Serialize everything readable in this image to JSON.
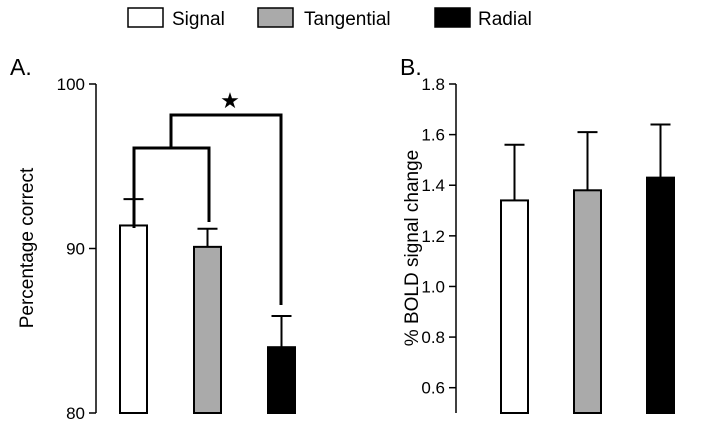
{
  "legend": {
    "items": [
      {
        "label": "Signal",
        "color": "#ffffff"
      },
      {
        "label": "Tangential",
        "color": "#aaaaaa"
      },
      {
        "label": "Radial",
        "color": "#000000"
      }
    ]
  },
  "chart_data": [
    {
      "panel": "A.",
      "type": "bar",
      "ylabel": "Percentage correct",
      "ylim": [
        80,
        100
      ],
      "yticks": [
        "80",
        "90",
        "100"
      ],
      "categories": [
        "Signal",
        "Tangential",
        "Radial"
      ],
      "values": [
        91.4,
        90.1,
        84.0
      ],
      "errors": [
        1.6,
        1.1,
        1.9
      ],
      "colors": [
        "#ffffff",
        "#aaaaaa",
        "#000000"
      ],
      "annotation": "★"
    },
    {
      "panel": "B.",
      "type": "bar",
      "ylabel": "% BOLD signal change",
      "ylim": [
        0.5,
        1.8
      ],
      "yticks": [
        "0.6",
        "0.8",
        "1.0",
        "1.2",
        "1.4",
        "1.6",
        "1.8"
      ],
      "categories": [
        "Signal",
        "Tangential",
        "Radial"
      ],
      "values": [
        1.34,
        1.38,
        1.43
      ],
      "errors": [
        0.22,
        0.23,
        0.21
      ],
      "colors": [
        "#ffffff",
        "#aaaaaa",
        "#000000"
      ]
    }
  ]
}
